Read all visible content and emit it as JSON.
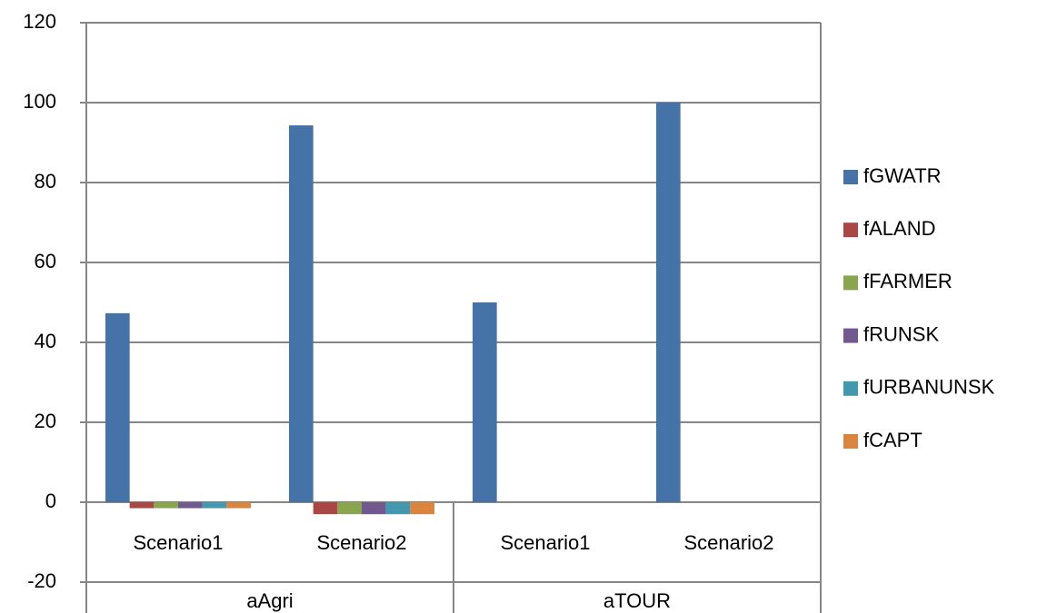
{
  "chart_data": {
    "type": "bar",
    "categories": [
      "Scenario1",
      "Scenario2",
      "Scenario1",
      "Scenario2"
    ],
    "groups": [
      {
        "name": "aAgri",
        "size": 2
      },
      {
        "name": "aTOUR",
        "size": 2
      }
    ],
    "series": [
      {
        "name": "fGWATR",
        "color": "#4572a7",
        "values": [
          47.3,
          94.3,
          50,
          100
        ]
      },
      {
        "name": "fALAND",
        "color": "#aa4643",
        "values": [
          -1.5,
          -3,
          0,
          0
        ]
      },
      {
        "name": "fFARMER",
        "color": "#89a54e",
        "values": [
          -1.5,
          -3,
          0,
          0
        ]
      },
      {
        "name": "fRUNSK",
        "color": "#71588f",
        "values": [
          -1.5,
          -3,
          0,
          0
        ]
      },
      {
        "name": "fURBANUNSK",
        "color": "#4198af",
        "values": [
          -1.5,
          -3,
          0,
          0
        ]
      },
      {
        "name": "fCAPT",
        "color": "#db843d",
        "values": [
          -1.5,
          -3,
          0,
          0
        ]
      }
    ],
    "ylim": [
      -20,
      120
    ],
    "yticks": [
      -20,
      0,
      20,
      40,
      60,
      80,
      100,
      120
    ],
    "grid": true,
    "legend": "right"
  }
}
